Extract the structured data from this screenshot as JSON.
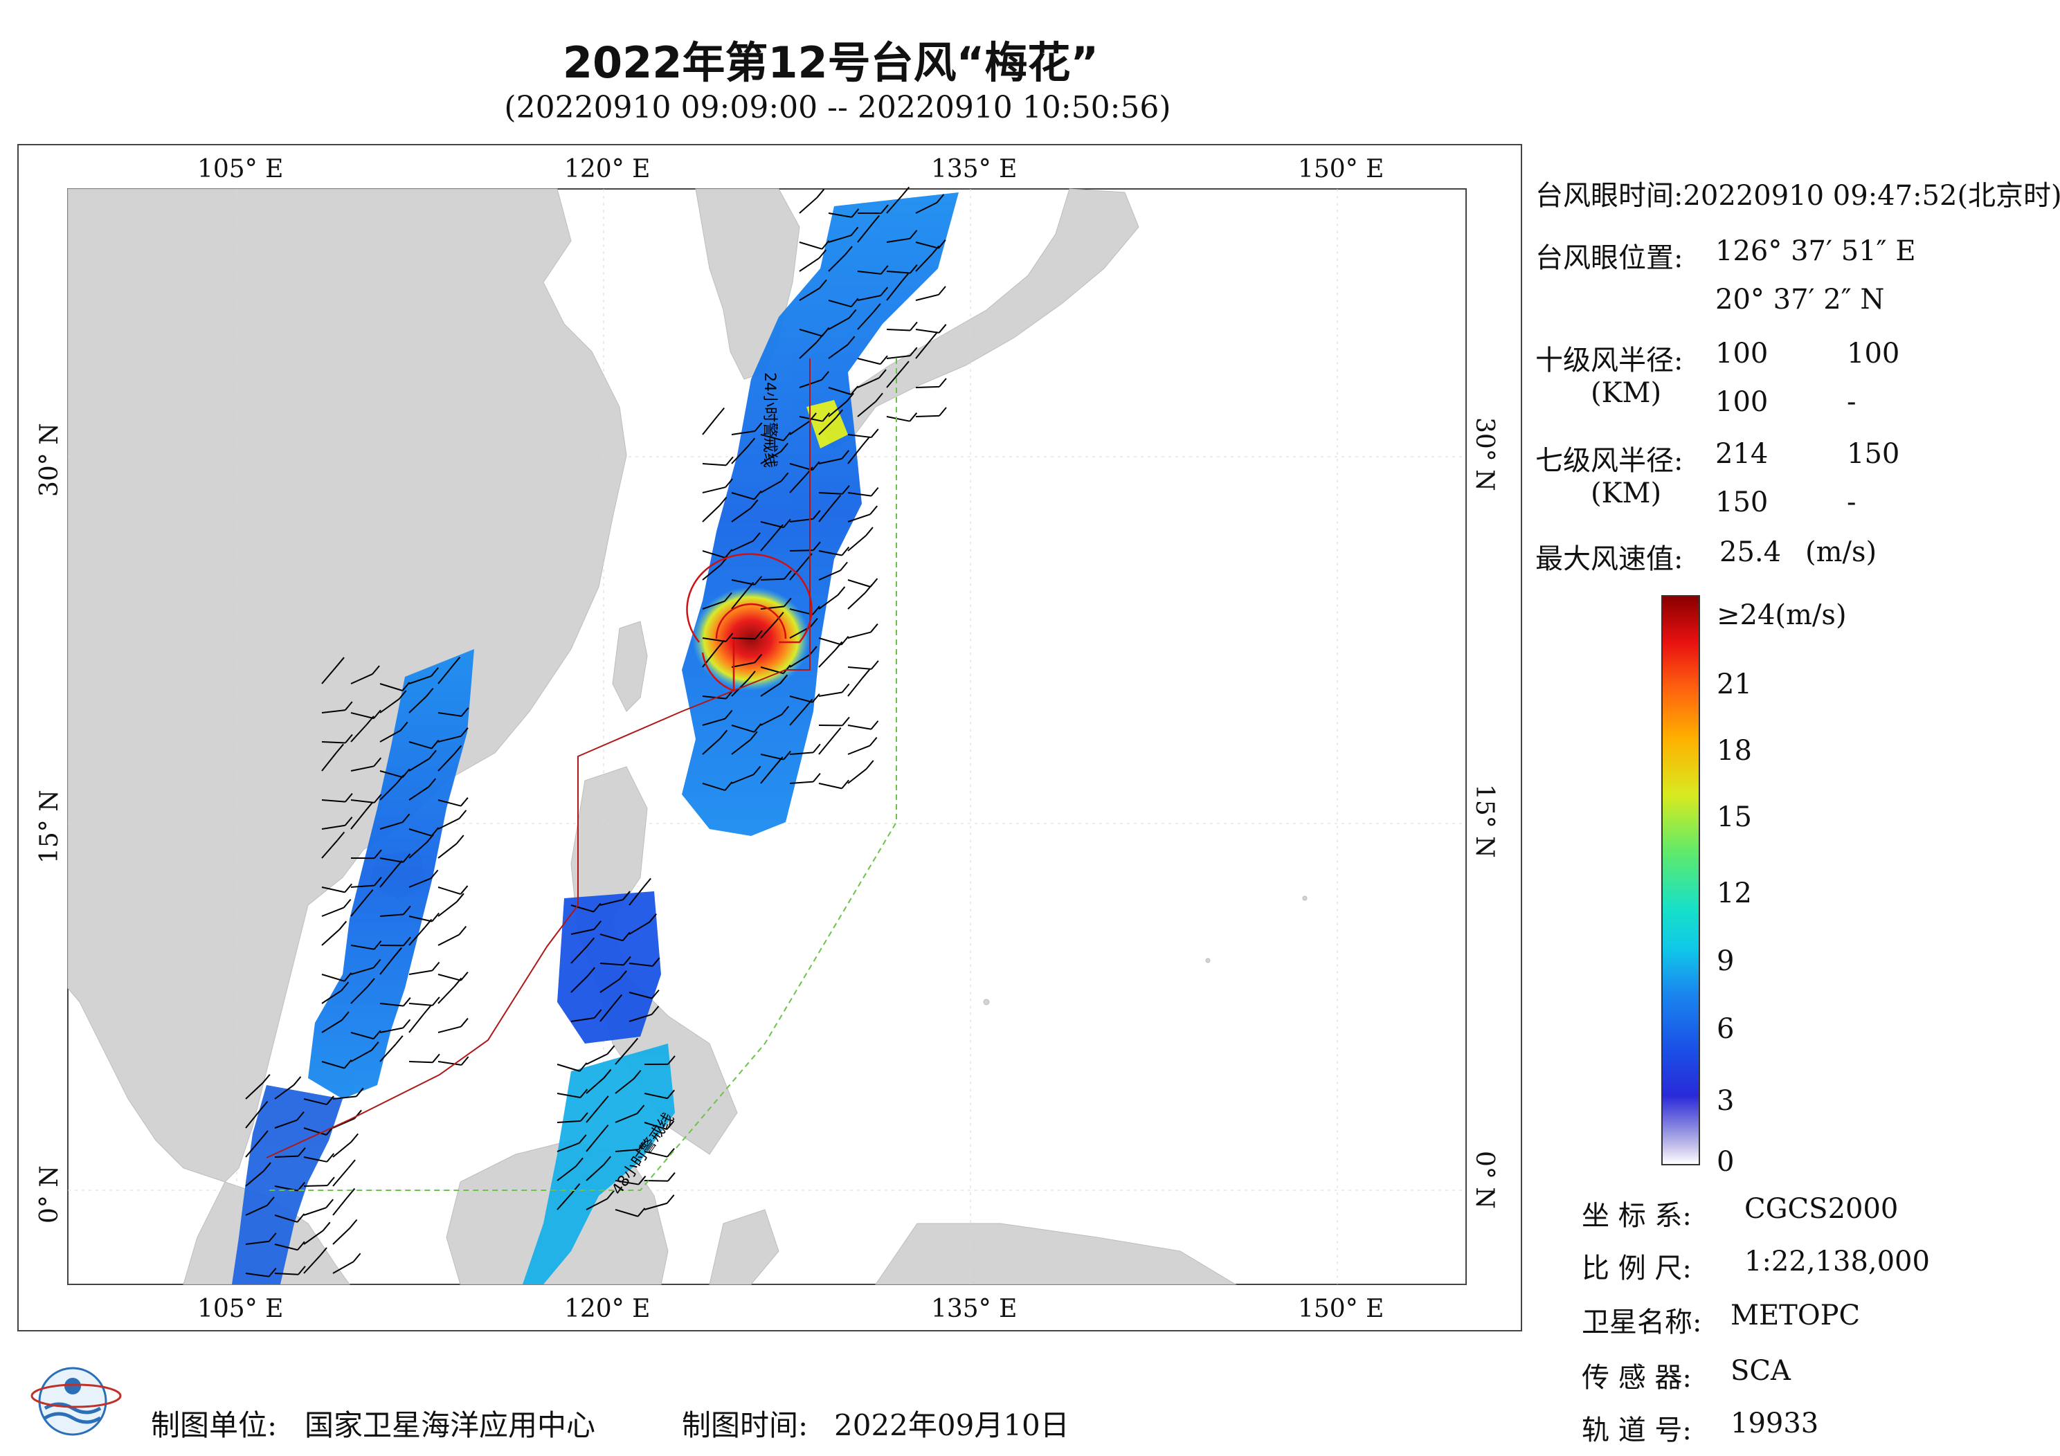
{
  "title": "2022年第12号台风“梅花”",
  "subtitle": "(20220910 09:09:00 -- 20220910 10:50:56)",
  "axes": {
    "lon_ticks": [
      "105° E",
      "120° E",
      "135° E",
      "150° E"
    ],
    "lat_ticks": [
      "30° N",
      "15° N",
      "0° N"
    ]
  },
  "map_labels": {
    "warning_24h": "24小时警戒线",
    "warning_48h": "48小时警戒线"
  },
  "info": {
    "eye_time_label": "台风眼时间:",
    "eye_time_value": "20220910 09:47:52(北京时)",
    "eye_pos_label": "台风眼位置:",
    "eye_lon": "126° 37′ 51″ E",
    "eye_lat": "20° 37′ 2″ N",
    "r10_label": "十级风半径:",
    "r10_unit": "(KM)",
    "r10_values": [
      "100",
      "100",
      "100",
      "-"
    ],
    "r7_label": "七级风半径:",
    "r7_unit": "(KM)",
    "r7_values": [
      "214",
      "150",
      "150",
      "-"
    ],
    "max_wind_label": "最大风速值:",
    "max_wind_value": "25.4",
    "max_wind_unit": "(m/s)"
  },
  "legend": {
    "labels": [
      "≥24(m/s)",
      "21",
      "18",
      "15",
      "12",
      "9",
      "6",
      "3",
      "0"
    ],
    "colors": [
      "#8a0000",
      "#e81010",
      "#ff6010",
      "#ffb000",
      "#d8ea20",
      "#60ea6a",
      "#10c8e8",
      "#1a4fe6",
      "#ffffff"
    ]
  },
  "satellite": {
    "crs_label": "坐 标 系:",
    "crs_value": "CGCS2000",
    "scale_label": "比 例 尺:",
    "scale_value": "1:22,138,000",
    "sat_label": "卫星名称:",
    "sat_value": "METOPC",
    "sensor_label": "传 感 器:",
    "sensor_value": "SCA",
    "orbit_label": "轨 道 号:",
    "orbit_value": "19933"
  },
  "footer": {
    "unit_label": "制图单位:",
    "unit_value": "国家卫星海洋应用中心",
    "time_label": "制图时间:",
    "time_value": "2022年09月10日"
  },
  "colors": {
    "land": "#d3d3d3",
    "warning24": "#b01818",
    "warning48": "#6cc24a",
    "frame": "#444444"
  }
}
